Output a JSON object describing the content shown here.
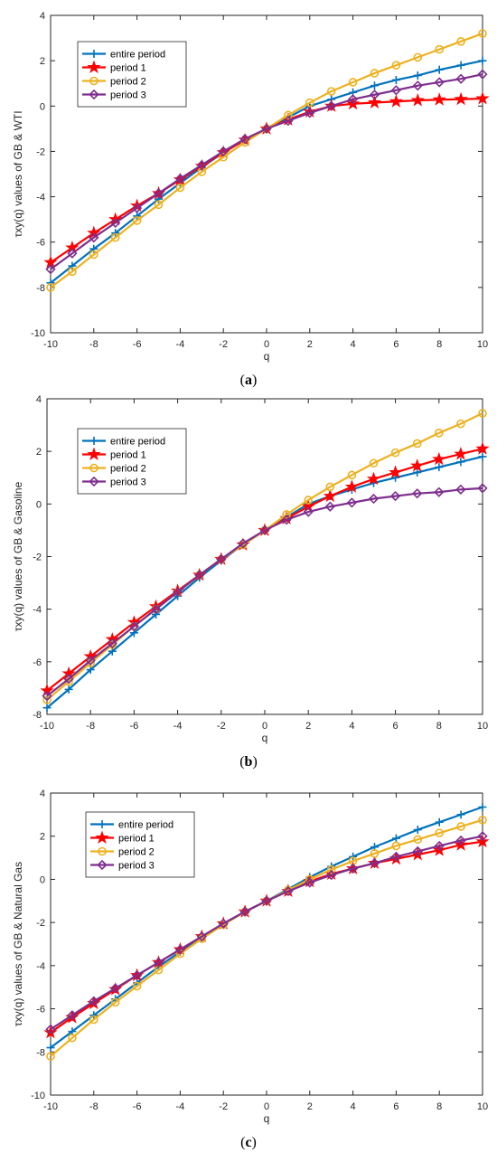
{
  "chart_data": [
    {
      "type": "line",
      "caption": "(a)",
      "caption_letter": "a",
      "xlabel": "q",
      "ylabel": "τxy(q) values of GB & WTI",
      "xlim": [
        -10,
        10
      ],
      "ylim": [
        -10,
        4
      ],
      "xticks": [
        -10,
        -8,
        -6,
        -4,
        -2,
        0,
        2,
        4,
        6,
        8,
        10
      ],
      "yticks": [
        -10,
        -8,
        -6,
        -4,
        -2,
        0,
        2,
        4
      ],
      "legend_position": "top-left",
      "x": [
        -10,
        -9,
        -8,
        -7,
        -6,
        -5,
        -4,
        -3,
        -2,
        -1,
        0,
        1,
        2,
        3,
        4,
        5,
        6,
        7,
        8,
        9,
        10
      ],
      "series": [
        {
          "name": "entire period",
          "color": "#0072BD",
          "marker": "plus",
          "values": [
            -7.8,
            -7.05,
            -6.3,
            -5.6,
            -4.85,
            -4.1,
            -3.4,
            -2.7,
            -2.05,
            -1.5,
            -1.0,
            -0.5,
            0.0,
            0.3,
            0.6,
            0.9,
            1.15,
            1.35,
            1.6,
            1.8,
            2.0
          ]
        },
        {
          "name": "period 1",
          "color": "#FF0000",
          "marker": "star",
          "values": [
            -6.9,
            -6.25,
            -5.6,
            -5.0,
            -4.4,
            -3.85,
            -3.25,
            -2.65,
            -2.05,
            -1.5,
            -1.0,
            -0.6,
            -0.25,
            0.0,
            0.1,
            0.15,
            0.2,
            0.25,
            0.28,
            0.3,
            0.33
          ]
        },
        {
          "name": "period 2",
          "color": "#EDB120",
          "marker": "circle",
          "values": [
            -8.0,
            -7.3,
            -6.55,
            -5.8,
            -5.05,
            -4.35,
            -3.6,
            -2.9,
            -2.25,
            -1.6,
            -1.0,
            -0.4,
            0.15,
            0.65,
            1.05,
            1.45,
            1.8,
            2.15,
            2.5,
            2.85,
            3.2
          ]
        },
        {
          "name": "period 3",
          "color": "#7E2F8E",
          "marker": "diamond",
          "values": [
            -7.2,
            -6.5,
            -5.8,
            -5.15,
            -4.5,
            -3.85,
            -3.2,
            -2.6,
            -2.0,
            -1.45,
            -1.0,
            -0.65,
            -0.3,
            0.0,
            0.3,
            0.5,
            0.7,
            0.9,
            1.05,
            1.2,
            1.4
          ]
        }
      ]
    },
    {
      "type": "line",
      "caption": "(b)",
      "caption_letter": "b",
      "xlabel": "q",
      "ylabel": "τxy(q) values of GB & Gasoline",
      "xlim": [
        -10,
        10
      ],
      "ylim": [
        -8,
        4
      ],
      "xticks": [
        -10,
        -8,
        -6,
        -4,
        -2,
        0,
        2,
        4,
        6,
        8,
        10
      ],
      "yticks": [
        -8,
        -6,
        -4,
        -2,
        0,
        2,
        4
      ],
      "legend_position": "top-left",
      "x": [
        -10,
        -9,
        -8,
        -7,
        -6,
        -5,
        -4,
        -3,
        -2,
        -1,
        0,
        1,
        2,
        3,
        4,
        5,
        6,
        7,
        8,
        9,
        10
      ],
      "series": [
        {
          "name": "entire period",
          "color": "#0072BD",
          "marker": "plus",
          "values": [
            -7.75,
            -7.05,
            -6.3,
            -5.6,
            -4.9,
            -4.2,
            -3.5,
            -2.8,
            -2.15,
            -1.55,
            -1.0,
            -0.5,
            0.0,
            0.3,
            0.55,
            0.8,
            1.0,
            1.2,
            1.4,
            1.6,
            1.8
          ]
        },
        {
          "name": "period 1",
          "color": "#FF0000",
          "marker": "star",
          "values": [
            -7.1,
            -6.45,
            -5.8,
            -5.15,
            -4.5,
            -3.9,
            -3.3,
            -2.7,
            -2.1,
            -1.55,
            -1.0,
            -0.55,
            -0.1,
            0.3,
            0.65,
            0.95,
            1.2,
            1.45,
            1.7,
            1.9,
            2.1
          ]
        },
        {
          "name": "period 2",
          "color": "#EDB120",
          "marker": "circle",
          "values": [
            -7.45,
            -6.75,
            -6.05,
            -5.35,
            -4.65,
            -4.0,
            -3.35,
            -2.7,
            -2.1,
            -1.55,
            -1.0,
            -0.4,
            0.15,
            0.65,
            1.1,
            1.55,
            1.95,
            2.3,
            2.7,
            3.05,
            3.45
          ]
        },
        {
          "name": "period 3",
          "color": "#7E2F8E",
          "marker": "diamond",
          "values": [
            -7.3,
            -6.65,
            -5.95,
            -5.3,
            -4.65,
            -4.0,
            -3.35,
            -2.7,
            -2.1,
            -1.5,
            -1.0,
            -0.6,
            -0.3,
            -0.1,
            0.05,
            0.2,
            0.3,
            0.4,
            0.45,
            0.55,
            0.6
          ]
        }
      ]
    },
    {
      "type": "line",
      "caption": "(c)",
      "caption_letter": "c",
      "xlabel": "q",
      "ylabel": "τxy(q) values of GB & Natural Gas",
      "xlim": [
        -10,
        10
      ],
      "ylim": [
        -10,
        4
      ],
      "xticks": [
        -10,
        -8,
        -6,
        -4,
        -2,
        0,
        2,
        4,
        6,
        8,
        10
      ],
      "yticks": [
        -10,
        -8,
        -6,
        -4,
        -2,
        0,
        2,
        4
      ],
      "legend_position": "top-left",
      "x": [
        -10,
        -9,
        -8,
        -7,
        -6,
        -5,
        -4,
        -3,
        -2,
        -1,
        0,
        1,
        2,
        3,
        4,
        5,
        6,
        7,
        8,
        9,
        10
      ],
      "series": [
        {
          "name": "entire period",
          "color": "#0072BD",
          "marker": "plus",
          "values": [
            -7.8,
            -7.05,
            -6.3,
            -5.55,
            -4.8,
            -4.05,
            -3.35,
            -2.7,
            -2.05,
            -1.5,
            -1.0,
            -0.45,
            0.1,
            0.6,
            1.05,
            1.5,
            1.9,
            2.3,
            2.65,
            3.0,
            3.35
          ]
        },
        {
          "name": "period 1",
          "color": "#FF0000",
          "marker": "star",
          "values": [
            -7.1,
            -6.4,
            -5.75,
            -5.1,
            -4.45,
            -3.85,
            -3.25,
            -2.65,
            -2.05,
            -1.5,
            -1.0,
            -0.55,
            -0.1,
            0.25,
            0.5,
            0.75,
            0.95,
            1.15,
            1.35,
            1.6,
            1.75
          ]
        },
        {
          "name": "period 2",
          "color": "#EDB120",
          "marker": "circle",
          "values": [
            -8.2,
            -7.35,
            -6.5,
            -5.7,
            -4.95,
            -4.2,
            -3.45,
            -2.75,
            -2.1,
            -1.5,
            -1.0,
            -0.5,
            0.0,
            0.45,
            0.85,
            1.2,
            1.55,
            1.85,
            2.15,
            2.45,
            2.75
          ]
        },
        {
          "name": "period 3",
          "color": "#7E2F8E",
          "marker": "diamond",
          "values": [
            -6.95,
            -6.3,
            -5.65,
            -5.05,
            -4.45,
            -3.85,
            -3.25,
            -2.65,
            -2.05,
            -1.5,
            -1.0,
            -0.55,
            -0.15,
            0.2,
            0.5,
            0.75,
            1.05,
            1.3,
            1.55,
            1.8,
            2.0
          ]
        }
      ]
    }
  ]
}
